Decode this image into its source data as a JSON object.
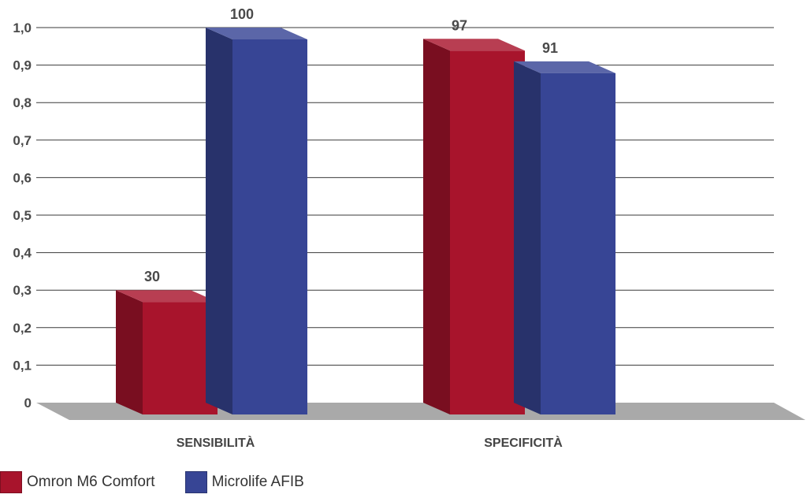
{
  "chart_data": {
    "type": "bar",
    "categories": [
      "SENSIBILITÀ",
      "SPECIFICITÀ"
    ],
    "series": [
      {
        "name": "Omron M6 Comfort",
        "values": [
          30,
          97
        ],
        "color": "#a8142c"
      },
      {
        "name": "Microlife AFIB",
        "values": [
          100,
          91
        ],
        "color": "#374595"
      }
    ],
    "yticks": [
      "0",
      "0,1",
      "0,2",
      "0,3",
      "0,4",
      "0,5",
      "0,6",
      "0,7",
      "0,8",
      "0,9",
      "1,0"
    ],
    "ylim": [
      0,
      100
    ],
    "grid": true,
    "legend_position": "bottom-left",
    "style": "3d"
  }
}
